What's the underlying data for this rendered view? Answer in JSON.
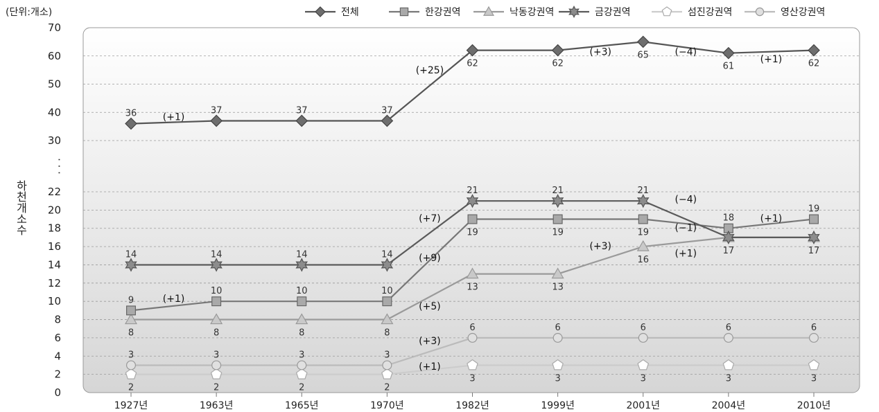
{
  "chart_data": {
    "type": "line",
    "unit_label": "(단위:개소)",
    "ylabel": "하천개소수",
    "axis_break": "· · ·",
    "categories": [
      "1927년",
      "1963년",
      "1965년",
      "1970년",
      "1982년",
      "1999년",
      "2001년",
      "2004년",
      "2010년"
    ],
    "y_ticks": [
      0,
      2,
      4,
      6,
      8,
      10,
      12,
      14,
      16,
      18,
      20,
      22,
      30,
      40,
      50,
      60,
      70
    ],
    "ylim": [
      0,
      70
    ],
    "broken_axis": {
      "lower_range": [
        0,
        22
      ],
      "upper_range": [
        30,
        70
      ]
    },
    "legend_position": "top-right",
    "grid": true,
    "series": [
      {
        "name": "전체",
        "marker": "diamond",
        "color": "#6e6e6e",
        "line_color": "#555555",
        "values": [
          36,
          37,
          37,
          37,
          62,
          62,
          65,
          61,
          62
        ],
        "value_labels": [
          "36",
          "37",
          "37",
          "37",
          "62",
          "62",
          "65",
          "61",
          "62"
        ],
        "label_pos": [
          "above",
          "above",
          "above",
          "above",
          "below",
          "below",
          "below",
          "below",
          "below"
        ]
      },
      {
        "name": "한강권역",
        "marker": "square",
        "color": "#a9a9a9",
        "line_color": "#777777",
        "values": [
          9,
          10,
          10,
          10,
          19,
          19,
          19,
          18,
          19
        ],
        "value_labels": [
          "9",
          "10",
          "10",
          "10",
          "19",
          "19",
          "19",
          "18",
          "19"
        ],
        "label_pos": [
          "above",
          "above",
          "above",
          "above",
          "below",
          "below",
          "below",
          "above",
          "above"
        ]
      },
      {
        "name": "낙동강권역",
        "marker": "triangle",
        "color": "#c9c9c9",
        "line_color": "#9a9a9a",
        "values": [
          8,
          8,
          8,
          8,
          13,
          13,
          16,
          17,
          17
        ],
        "value_labels": [
          "8",
          "8",
          "8",
          "8",
          "13",
          "13",
          "16",
          "",
          ""
        ],
        "label_pos": [
          "below",
          "below",
          "below",
          "below",
          "below",
          "below",
          "below",
          "below",
          "below"
        ]
      },
      {
        "name": "금강권역",
        "marker": "star",
        "color": "#8c8c8c",
        "line_color": "#5a5a5a",
        "values": [
          14,
          14,
          14,
          14,
          21,
          21,
          21,
          17,
          17
        ],
        "value_labels": [
          "14",
          "14",
          "14",
          "14",
          "21",
          "21",
          "21",
          "17",
          "17"
        ],
        "label_pos": [
          "above",
          "above",
          "above",
          "above",
          "above",
          "above",
          "above",
          "below",
          "below"
        ]
      },
      {
        "name": "섬진강권역",
        "marker": "pentagon",
        "color": "#ffffff",
        "line_color": "#cccccc",
        "values": [
          2,
          2,
          2,
          2,
          3,
          3,
          3,
          3,
          3
        ],
        "value_labels": [
          "2",
          "2",
          "2",
          "2",
          "3",
          "3",
          "3",
          "3",
          "3"
        ],
        "label_pos": [
          "below",
          "below",
          "below",
          "below",
          "below",
          "below",
          "below",
          "below",
          "below"
        ]
      },
      {
        "name": "영산강권역",
        "marker": "circle",
        "color": "#e0e0e0",
        "line_color": "#bbbbbb",
        "values": [
          3,
          3,
          3,
          3,
          6,
          6,
          6,
          6,
          6
        ],
        "value_labels": [
          "3",
          "3",
          "3",
          "3",
          "6",
          "6",
          "6",
          "6",
          "6"
        ],
        "label_pos": [
          "above",
          "above",
          "above",
          "above",
          "above",
          "above",
          "above",
          "above",
          "above"
        ]
      }
    ],
    "annotations": [
      {
        "text": "(+1)",
        "x_between": [
          0,
          1
        ],
        "y": 38.5
      },
      {
        "text": "(+25)",
        "x_between": [
          3,
          4
        ],
        "y": 55
      },
      {
        "text": "(+3)",
        "x_between": [
          5,
          6
        ],
        "y": 61.5
      },
      {
        "text": "(−4)",
        "x_between": [
          6,
          7
        ],
        "y": 61.5
      },
      {
        "text": "(+1)",
        "x_between": [
          7,
          8
        ],
        "y": 59
      },
      {
        "text": "(+1)",
        "x_between": [
          0,
          1
        ],
        "y": 10.3
      },
      {
        "text": "(+7)",
        "x_between": [
          3,
          4
        ],
        "y": 19.1
      },
      {
        "text": "(+9)",
        "x_between": [
          3,
          4
        ],
        "y": 14.8
      },
      {
        "text": "(+5)",
        "x_between": [
          3,
          4
        ],
        "y": 9.5
      },
      {
        "text": "(+3)",
        "x_between": [
          3,
          4
        ],
        "y": 5.7
      },
      {
        "text": "(+1)",
        "x_between": [
          3,
          4
        ],
        "y": 2.9
      },
      {
        "text": "(−4)",
        "x_between": [
          6,
          7
        ],
        "y": 21.2
      },
      {
        "text": "(+3)",
        "x_between": [
          5,
          6
        ],
        "y": 16.1
      },
      {
        "text": "(−1)",
        "x_between": [
          6,
          7
        ],
        "y": 18.1
      },
      {
        "text": "(+1)",
        "x_between": [
          6,
          7
        ],
        "y": 15.3
      },
      {
        "text": "(+1)",
        "x_between": [
          7,
          8
        ],
        "y": 19.1
      }
    ]
  }
}
